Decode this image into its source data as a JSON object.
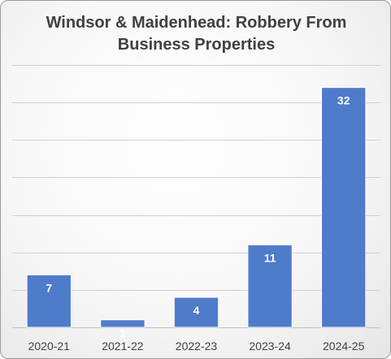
{
  "chart_data": {
    "type": "bar",
    "title": "Windsor & Maidenhead: Robbery From\nBusiness Properties",
    "categories": [
      "2020-21",
      "2021-22",
      "2022-23",
      "2023-24",
      "2024-25"
    ],
    "values": [
      7,
      1,
      4,
      11,
      32
    ],
    "xlabel": "",
    "ylabel": "",
    "ylim": [
      0,
      35
    ],
    "grid": true,
    "legend": "none",
    "colors": {
      "bar": "#4f7bcb",
      "bar_edge": "#ffffff",
      "grid": "#d0d0d0",
      "axis": "#bfbfbf"
    }
  }
}
